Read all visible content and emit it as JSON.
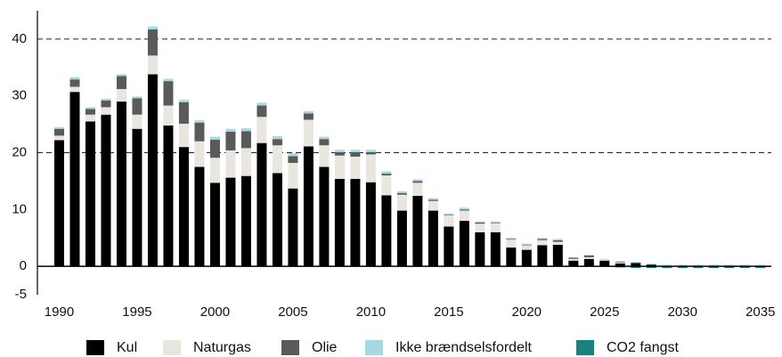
{
  "chart_data": {
    "type": "bar",
    "stacked": true,
    "x": [
      1990,
      1991,
      1992,
      1993,
      1994,
      1995,
      1996,
      1997,
      1998,
      1999,
      2000,
      2001,
      2002,
      2003,
      2004,
      2005,
      2006,
      2007,
      2008,
      2009,
      2010,
      2011,
      2012,
      2013,
      2014,
      2015,
      2016,
      2017,
      2018,
      2019,
      2020,
      2021,
      2022,
      2023,
      2024,
      2025,
      2026,
      2027,
      2028,
      2029,
      2030,
      2031,
      2032,
      2033,
      2034,
      2035
    ],
    "series": [
      {
        "name": "Kul",
        "color": "#000000",
        "values": [
          22.2,
          30.7,
          25.5,
          26.7,
          29,
          24.2,
          33.8,
          24.8,
          21,
          17.5,
          14.7,
          15.6,
          15.9,
          21.7,
          16.4,
          13.7,
          21.1,
          17.5,
          15.4,
          15.4,
          14.8,
          12.5,
          9.8,
          12.4,
          9.8,
          7,
          8,
          6,
          6,
          3.3,
          2.9,
          3.7,
          3.8,
          1,
          1.3,
          1,
          0.5,
          0.6,
          0.3,
          0.1,
          0.1,
          0.1,
          0.1,
          0.1,
          0.1,
          0.1
        ]
      },
      {
        "name": "Naturgas",
        "color": "#e8e6df",
        "values": [
          0.8,
          0.9,
          1.2,
          1.3,
          2.2,
          2.5,
          3.3,
          3.5,
          4.1,
          4.5,
          4.4,
          4.8,
          4.9,
          4.6,
          4.9,
          4.5,
          4.7,
          3.8,
          4.1,
          3.9,
          4.9,
          3.5,
          2.8,
          2.3,
          1.7,
          2,
          1.8,
          1.5,
          1.6,
          1.4,
          0.8,
          0.9,
          0.5,
          0.3,
          0.3,
          0.2,
          0.2,
          0.1,
          0.1,
          0.1,
          0.1,
          0.1,
          0.1,
          0.1,
          0.1,
          0.1
        ]
      },
      {
        "name": "Olie",
        "color": "#5a5a5a",
        "values": [
          1.2,
          1.3,
          1,
          1.2,
          2.3,
          2.9,
          4.6,
          4.3,
          3.8,
          3.3,
          3.2,
          3.3,
          3,
          2,
          1.1,
          1.2,
          1.1,
          1.1,
          0.6,
          0.8,
          0.4,
          0.3,
          0.3,
          0.3,
          0.2,
          0.1,
          0.2,
          0.2,
          0.1,
          0.1,
          0.1,
          0.2,
          0.3,
          0.2,
          0.3,
          0,
          0.1,
          0,
          0,
          0,
          0,
          0,
          0,
          0,
          0,
          0
        ]
      },
      {
        "name": "Ikke brændselsfordelt",
        "color": "#a8d8e0",
        "values": [
          0.3,
          0.4,
          0.3,
          0.3,
          0.3,
          0.3,
          0.5,
          0.4,
          0.4,
          0.4,
          0.5,
          0.5,
          0.5,
          0.5,
          0.5,
          0.5,
          0.4,
          0.4,
          0.4,
          0.4,
          0.4,
          0.4,
          0.3,
          0.3,
          0.3,
          0.2,
          0.3,
          0.2,
          0.2,
          0.2,
          0.2,
          0.2,
          0.2,
          0.1,
          0.1,
          0.1,
          0.1,
          0.1,
          0.1,
          0.1,
          0.1,
          0.1,
          0.1,
          0.1,
          0.1,
          0.1
        ]
      },
      {
        "name": "CO2 fangst",
        "color": "#1a8080",
        "values": [
          0,
          0,
          0,
          0,
          0,
          0,
          0,
          0,
          0,
          0,
          0,
          0,
          0,
          0,
          0,
          0,
          0,
          0,
          0,
          0,
          0,
          0,
          0,
          0,
          0,
          0,
          0,
          0,
          0,
          0,
          0,
          0,
          0,
          0,
          0,
          0,
          -0.2,
          -0.3,
          -0.3,
          -0.3,
          -0.3,
          -0.3,
          -0.3,
          -0.3,
          -0.3,
          -0.3
        ]
      }
    ],
    "xlim": [
      1988.6,
      2035.7
    ],
    "xticks": [
      1990,
      1995,
      2000,
      2005,
      2010,
      2015,
      2020,
      2025,
      2030,
      2035
    ],
    "ylim": [
      -5,
      45
    ],
    "yticks": [
      -5,
      0,
      10,
      20,
      30,
      40
    ],
    "gridlines": [
      20,
      40
    ],
    "legend": "bottom"
  }
}
